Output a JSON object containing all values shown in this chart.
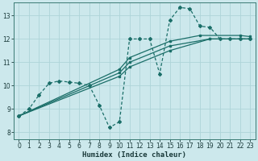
{
  "xlabel": "Humidex (Indice chaleur)",
  "background_color": "#cce8ec",
  "grid_color": "#aed4d8",
  "line_color": "#1a6e68",
  "xlim": [
    -0.5,
    23.5
  ],
  "ylim": [
    7.7,
    13.55
  ],
  "xticks": [
    0,
    1,
    2,
    3,
    4,
    5,
    6,
    7,
    8,
    9,
    10,
    11,
    12,
    13,
    14,
    15,
    16,
    17,
    18,
    19,
    20,
    21,
    22,
    23
  ],
  "yticks": [
    8,
    9,
    10,
    11,
    12,
    13
  ],
  "main_line": {
    "x": [
      0,
      1,
      2,
      3,
      4,
      5,
      6,
      7,
      8,
      9,
      10,
      11,
      12,
      13,
      14,
      15,
      16,
      17,
      18,
      19,
      20,
      21,
      22,
      23
    ],
    "y": [
      8.7,
      9.0,
      9.6,
      10.1,
      10.2,
      10.15,
      10.1,
      10.0,
      9.15,
      8.2,
      8.45,
      12.0,
      12.0,
      12.0,
      10.5,
      12.8,
      13.35,
      13.3,
      12.55,
      12.5,
      12.0,
      12.0,
      12.0,
      12.0
    ]
  },
  "smooth_lines": [
    {
      "x": [
        0,
        10,
        11,
        15,
        19,
        22,
        23
      ],
      "y": [
        8.7,
        10.4,
        10.8,
        11.5,
        12.0,
        12.0,
        12.0
      ]
    },
    {
      "x": [
        0,
        10,
        11,
        15,
        19,
        22,
        23
      ],
      "y": [
        8.7,
        10.55,
        11.0,
        11.7,
        12.0,
        12.0,
        12.0
      ]
    },
    {
      "x": [
        0,
        10,
        11,
        15,
        18,
        22,
        23
      ],
      "y": [
        8.7,
        10.7,
        11.2,
        11.9,
        12.15,
        12.15,
        12.1
      ]
    }
  ]
}
